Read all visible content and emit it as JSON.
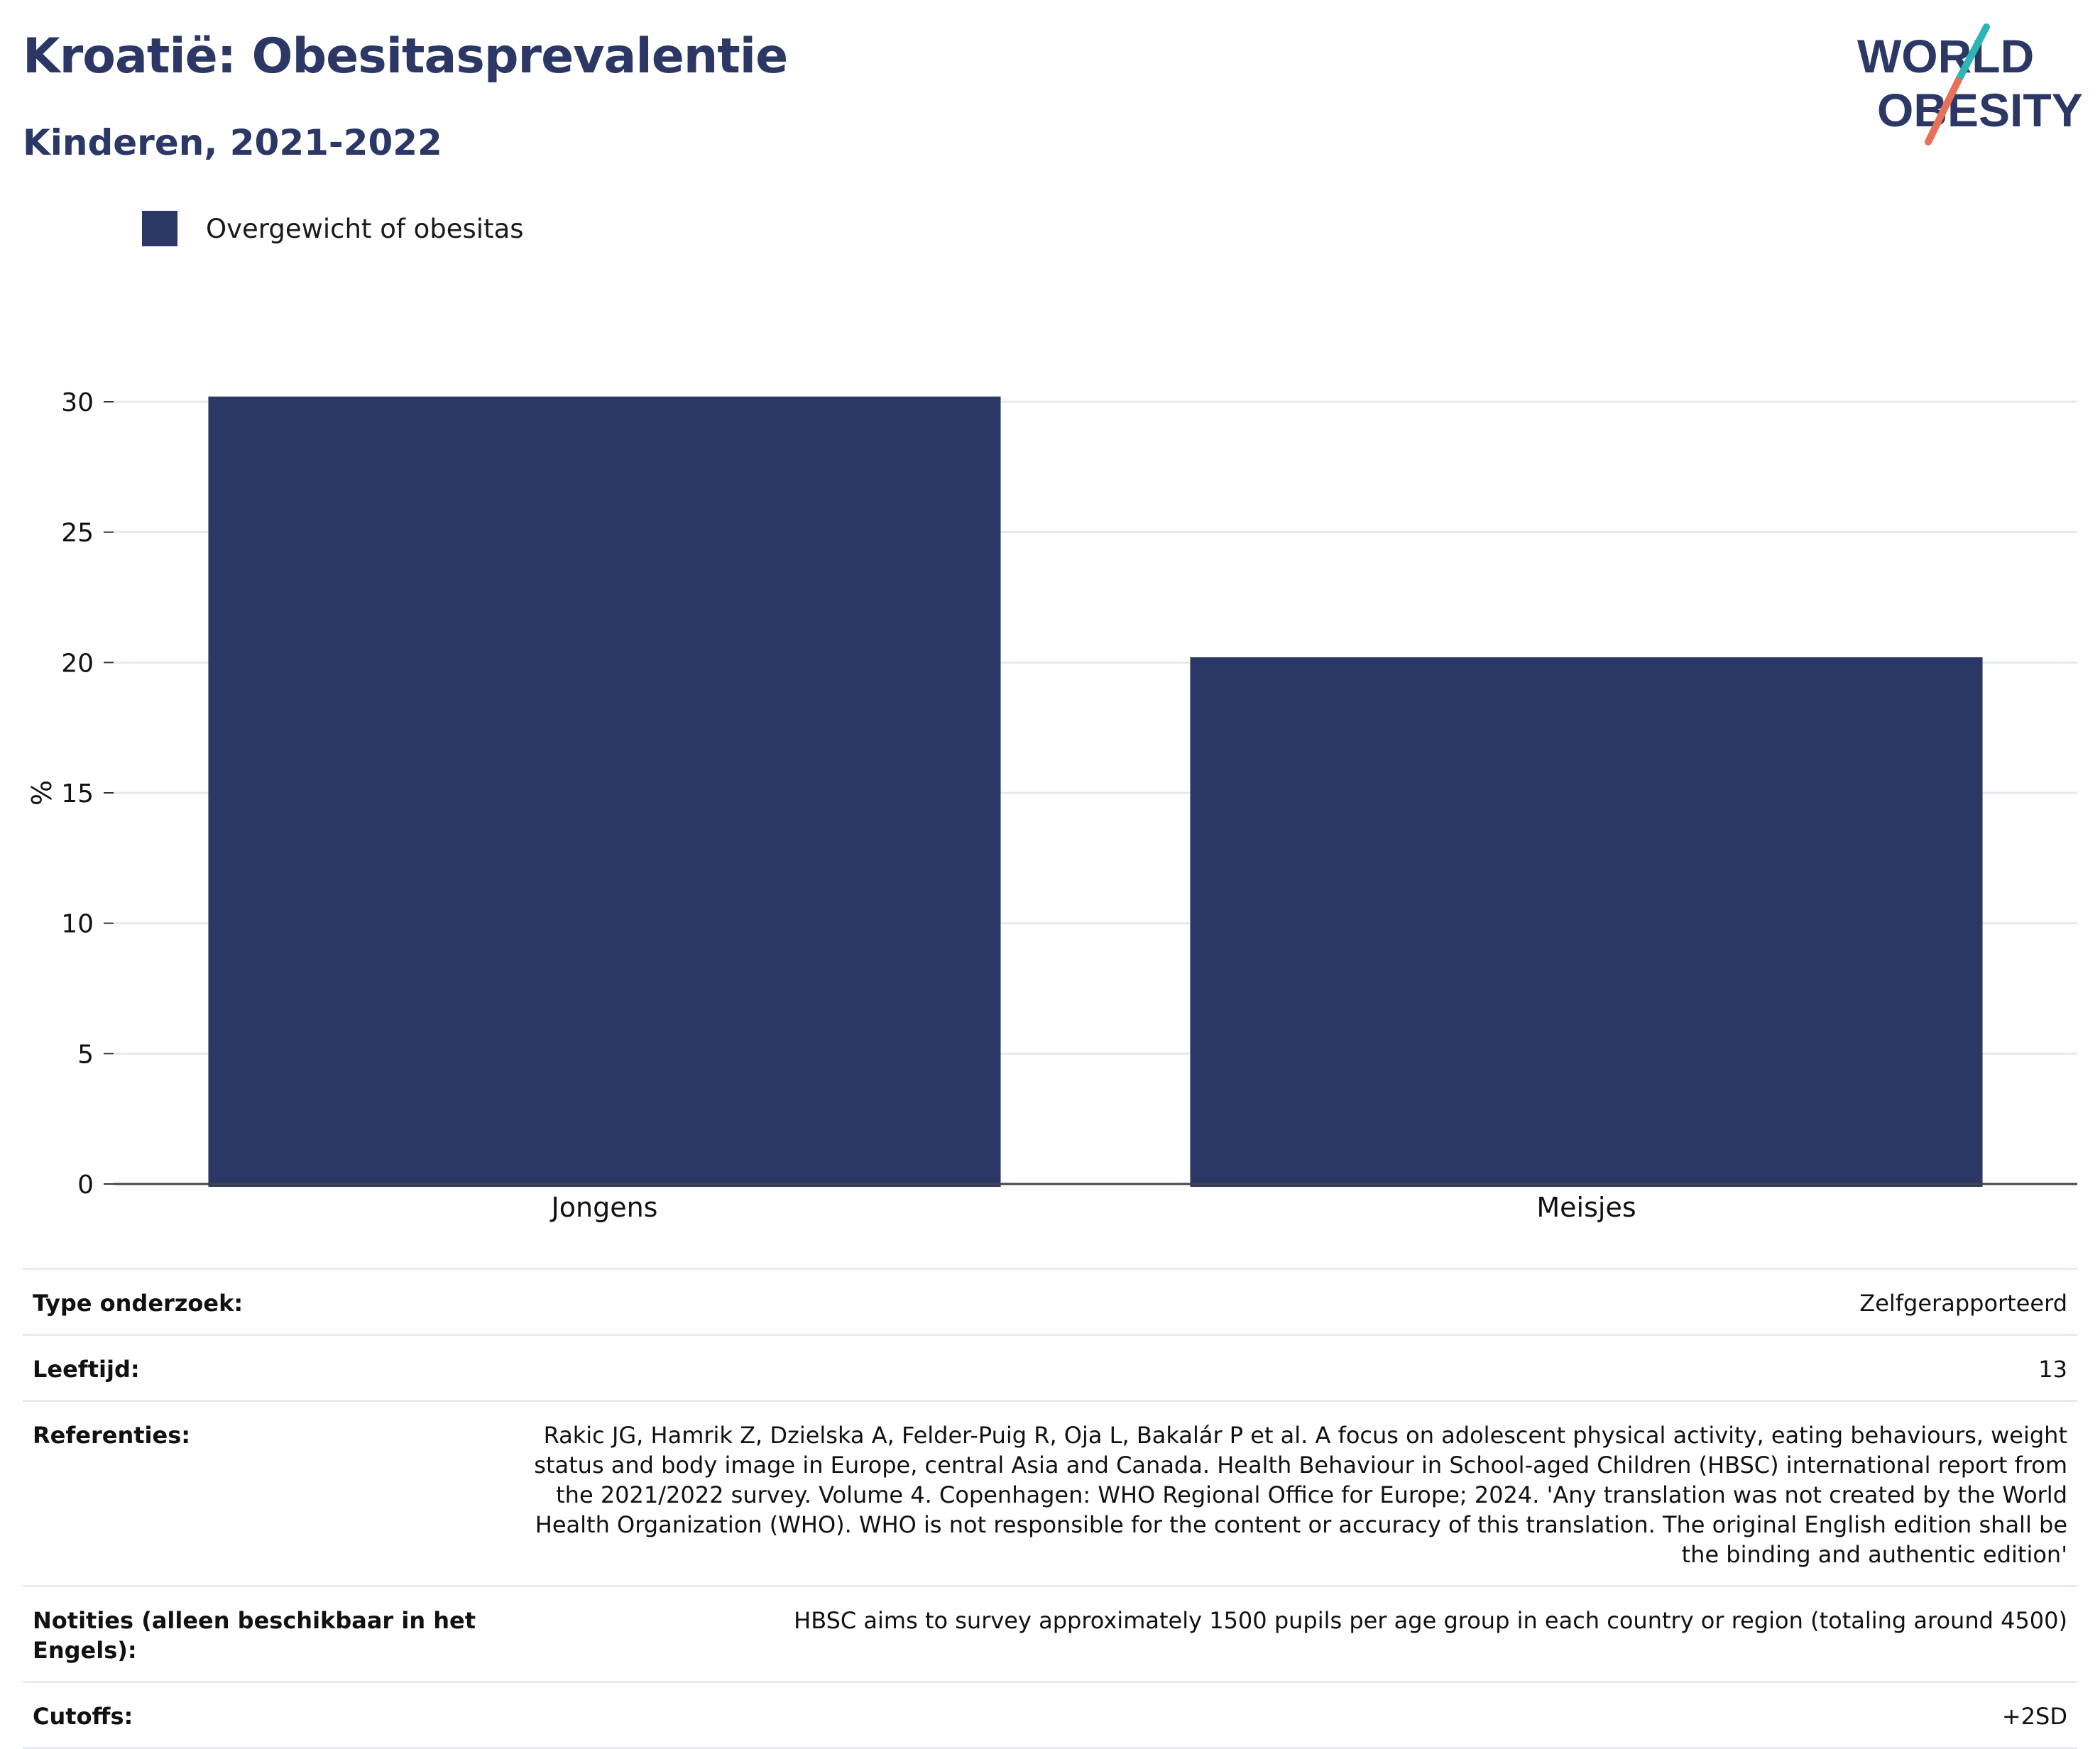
{
  "header": {
    "title": "Kroatië: Obesitasprevalentie",
    "subtitle": "Kinderen, 2021-2022"
  },
  "logo": {
    "line1": "WORLD",
    "line2": "OBESITY",
    "colors": {
      "navy": "#2b3764",
      "teal": "#2cb5b4",
      "coral": "#e8705a"
    }
  },
  "legend": {
    "items": [
      {
        "label": "Overgewicht of obesitas",
        "color": "#2b3764"
      }
    ]
  },
  "chart_data": {
    "type": "bar",
    "categories": [
      "Jongens",
      "Meisjes"
    ],
    "series": [
      {
        "name": "Overgewicht of obesitas",
        "values": [
          30.2,
          20.2
        ],
        "color": "#2b3764"
      }
    ],
    "ylabel": "%",
    "ylim": [
      0,
      30
    ],
    "yticks": [
      0,
      5,
      10,
      15,
      20,
      25,
      30
    ],
    "grid": true,
    "legend_position": "top-left"
  },
  "meta": [
    {
      "label": "Type onderzoek:",
      "value": "Zelfgerapporteerd"
    },
    {
      "label": "Leeftijd:",
      "value": "13"
    },
    {
      "label": "Referenties:",
      "value": "Rakic JG, Hamrik Z, Dzielska A, Felder-Puig R, Oja L, Bakalár P et al. A focus on adolescent physical activity, eating behaviours, weight status and body image in Europe, central Asia and Canada. Health Behaviour in School-aged Children (HBSC) international report from the 2021/2022 survey. Volume 4. Copenhagen: WHO Regional Office for Europe; 2024. 'Any translation was not created by the World Health Organization (WHO). WHO is not responsible for the content or accuracy of this translation. The original English edition shall be the binding and authentic edition'"
    },
    {
      "label": "Notities (alleen beschikbaar in het Engels):",
      "value": "HBSC aims to survey approximately 1500 pupils per age group in each country or region (totaling around 4500)"
    },
    {
      "label": "Cutoffs:",
      "value": "+2SD"
    }
  ]
}
